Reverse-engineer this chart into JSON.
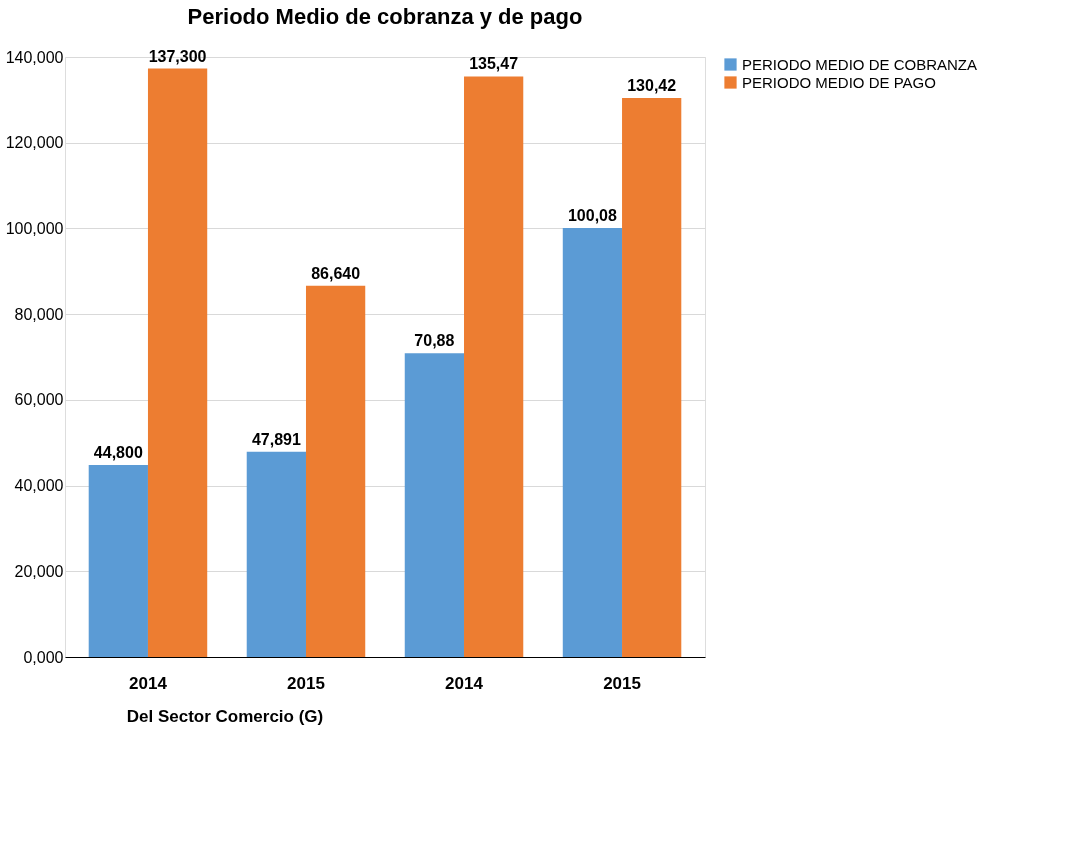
{
  "chart_data": {
    "type": "bar",
    "title": "Periodo Medio de cobranza y de pago",
    "categories": [
      "2014",
      "2015",
      "2014",
      "2015"
    ],
    "series": [
      {
        "name": "PERIODO MEDIO DE COBRANZA",
        "color": "#5b9bd5",
        "values": [
          44.8,
          47.891,
          70.88,
          100.08
        ],
        "value_labels": [
          "44,800",
          "47,891",
          "70,88",
          "100,08"
        ]
      },
      {
        "name": "PERIODO MEDIO DE PAGO",
        "color": "#ed7d31",
        "values": [
          137.3,
          86.64,
          135.47,
          130.42
        ],
        "value_labels": [
          "137,300",
          "86,640",
          "135,47",
          "130,42"
        ]
      }
    ],
    "ylim": [
      0,
      140
    ],
    "yticks": [
      {
        "value": 0,
        "label": "0,000"
      },
      {
        "value": 20,
        "label": "20,000"
      },
      {
        "value": 40,
        "label": "40,000"
      },
      {
        "value": 60,
        "label": "60,000"
      },
      {
        "value": 80,
        "label": "80,000"
      },
      {
        "value": 100,
        "label": "100,000"
      },
      {
        "value": 120,
        "label": "120,000"
      },
      {
        "value": 140,
        "label": "140,000"
      }
    ],
    "grid": "y",
    "legend": "right",
    "annotations": [
      "Del Sector Comercio (G)"
    ]
  }
}
